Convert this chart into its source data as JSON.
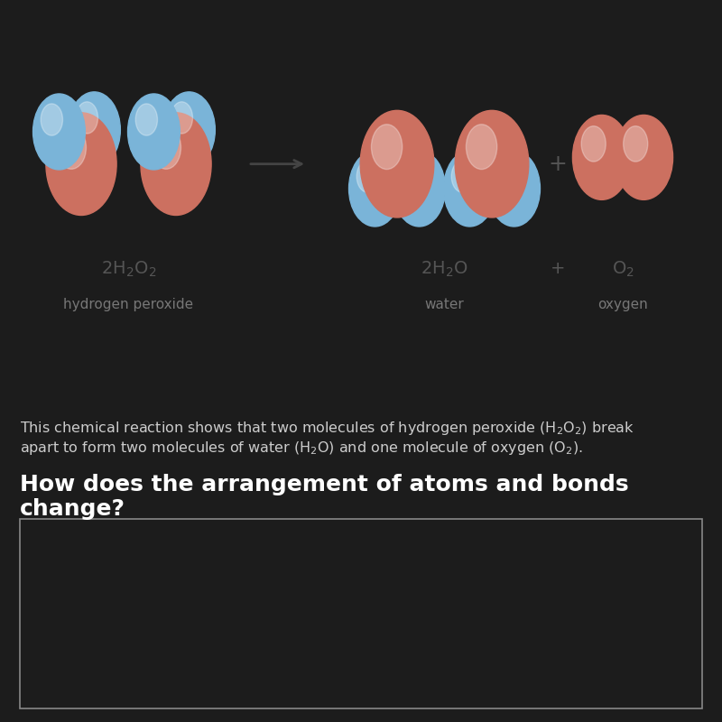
{
  "bg_top": "#ffffff",
  "bg_bottom": "#1c1c1c",
  "oxygen_color_h2o2": "#cc7060",
  "oxygen_color_h2o": "#cc7060",
  "oxygen_color_o2": "#cc7060",
  "hydrogen_color": "#7ab4d8",
  "formula_color": "#555555",
  "label_color": "#777777",
  "text_color_dark": "#cccccc",
  "heading_color": "#ffffff",
  "box_border_color": "#888888",
  "description_line1": "This chemical reaction shows that two molecules of hydrogen peroxide (H",
  "description_line1b": "2",
  "description_line1c": "O",
  "description_line1d": "2",
  "description_line1e": ") break",
  "description_line2": "apart to form two molecules of water (H",
  "description_line2b": "2",
  "description_line2c": "O) and one molecule of oxygen (O",
  "description_line2d": "2",
  "description_line2e": ").",
  "heading_text": "How does the arrangement of atoms and bonds\nchange?",
  "label_reactant": "hydrogen peroxide",
  "label_product1": "water",
  "label_product2": "oxygen"
}
